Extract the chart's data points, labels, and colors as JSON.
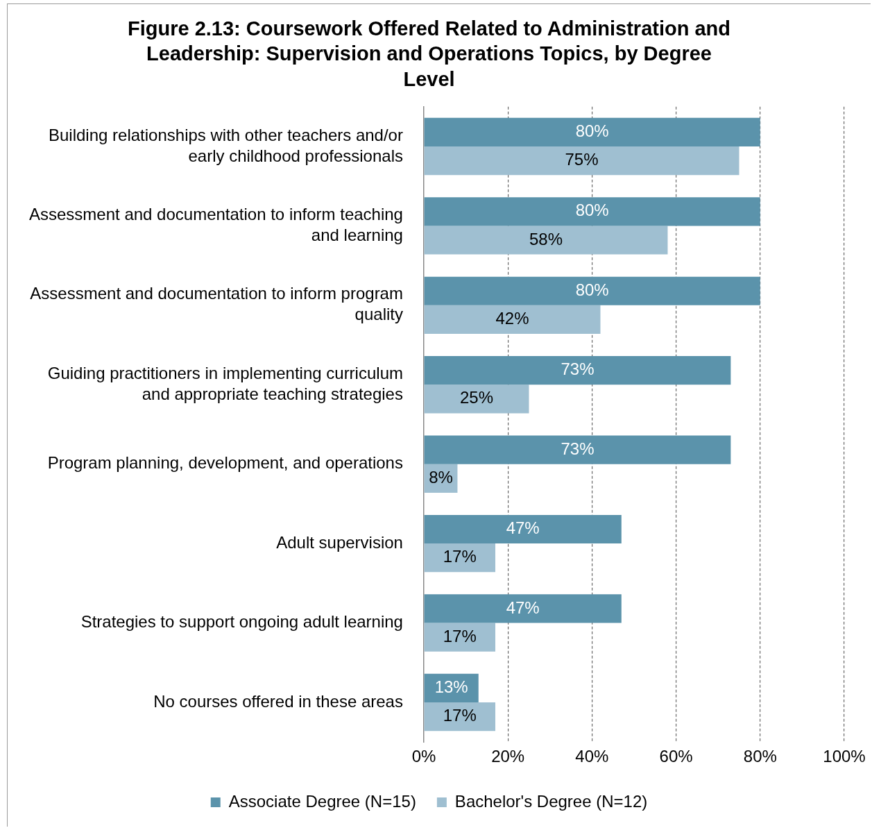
{
  "chart_data": {
    "type": "bar",
    "orientation": "horizontal",
    "title": "Figure 2.13: Coursework Offered Related to Administration and Leadership: Supervision and Operations Topics, by Degree Level",
    "categories": [
      "Building relationships with other teachers and/or early childhood professionals",
      "Assessment and documentation to inform teaching and learning",
      "Assessment and documentation to inform program quality",
      "Guiding practitioners in implementing curriculum and appropriate teaching strategies",
      "Program planning, development, and operations",
      "Adult supervision",
      "Strategies to support ongoing adult learning",
      "No courses offered in these areas"
    ],
    "series": [
      {
        "name": "Associate Degree (N=15)",
        "color": "#5b93ab",
        "values": [
          80,
          80,
          80,
          73,
          73,
          47,
          47,
          13
        ],
        "value_labels": [
          "80%",
          "80%",
          "80%",
          "73%",
          "73%",
          "47%",
          "47%",
          "13%"
        ]
      },
      {
        "name": "Bachelor's Degree (N=12)",
        "color": "#9fbfd1",
        "values": [
          75,
          58,
          42,
          25,
          8,
          17,
          17,
          17
        ],
        "value_labels": [
          "75%",
          "58%",
          "42%",
          "25%",
          "8%",
          "17%",
          "17%",
          "17%"
        ]
      }
    ],
    "xlim": [
      0,
      100
    ],
    "xticks": [
      {
        "value": 0,
        "label": "0%"
      },
      {
        "value": 20,
        "label": "20%"
      },
      {
        "value": 40,
        "label": "40%"
      },
      {
        "value": 60,
        "label": "60%"
      },
      {
        "value": 80,
        "label": "80%"
      },
      {
        "value": 100,
        "label": "100%"
      }
    ],
    "grid": "x",
    "legend": "bottom"
  }
}
